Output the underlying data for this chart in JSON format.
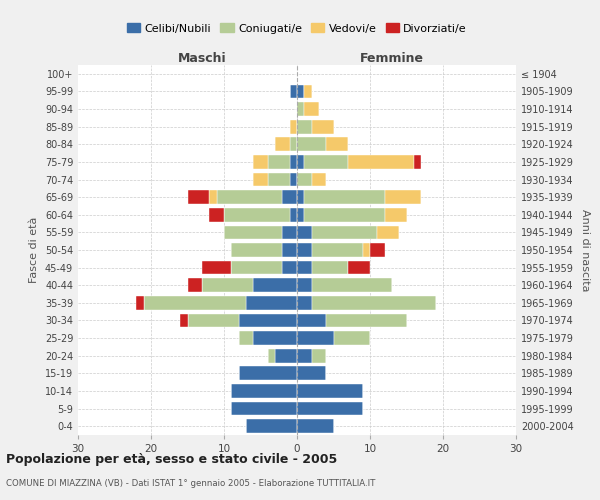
{
  "age_groups": [
    "0-4",
    "5-9",
    "10-14",
    "15-19",
    "20-24",
    "25-29",
    "30-34",
    "35-39",
    "40-44",
    "45-49",
    "50-54",
    "55-59",
    "60-64",
    "65-69",
    "70-74",
    "75-79",
    "80-84",
    "85-89",
    "90-94",
    "95-99",
    "100+"
  ],
  "birth_years": [
    "2000-2004",
    "1995-1999",
    "1990-1994",
    "1985-1989",
    "1980-1984",
    "1975-1979",
    "1970-1974",
    "1965-1969",
    "1960-1964",
    "1955-1959",
    "1950-1954",
    "1945-1949",
    "1940-1944",
    "1935-1939",
    "1930-1934",
    "1925-1929",
    "1920-1924",
    "1915-1919",
    "1910-1914",
    "1905-1909",
    "≤ 1904"
  ],
  "maschi": {
    "celibi": [
      7,
      9,
      9,
      8,
      3,
      6,
      8,
      7,
      6,
      2,
      2,
      2,
      1,
      2,
      1,
      1,
      0,
      0,
      0,
      1,
      0
    ],
    "coniugati": [
      0,
      0,
      0,
      0,
      1,
      2,
      7,
      14,
      7,
      7,
      7,
      8,
      9,
      9,
      3,
      3,
      1,
      0,
      0,
      0,
      0
    ],
    "vedovi": [
      0,
      0,
      0,
      0,
      0,
      0,
      0,
      0,
      0,
      0,
      0,
      0,
      0,
      1,
      2,
      2,
      2,
      1,
      0,
      0,
      0
    ],
    "divorziati": [
      0,
      0,
      0,
      0,
      0,
      0,
      1,
      1,
      2,
      4,
      0,
      0,
      2,
      3,
      0,
      0,
      0,
      0,
      0,
      0,
      0
    ]
  },
  "femmine": {
    "nubili": [
      5,
      9,
      9,
      4,
      2,
      5,
      4,
      2,
      2,
      2,
      2,
      2,
      1,
      1,
      0,
      1,
      0,
      0,
      0,
      1,
      0
    ],
    "coniugate": [
      0,
      0,
      0,
      0,
      2,
      5,
      11,
      17,
      11,
      5,
      7,
      9,
      11,
      11,
      2,
      6,
      4,
      2,
      1,
      0,
      0
    ],
    "vedove": [
      0,
      0,
      0,
      0,
      0,
      0,
      0,
      0,
      0,
      0,
      1,
      3,
      3,
      5,
      2,
      9,
      3,
      3,
      2,
      1,
      0
    ],
    "divorziate": [
      0,
      0,
      0,
      0,
      0,
      0,
      0,
      0,
      0,
      3,
      2,
      0,
      0,
      0,
      0,
      1,
      0,
      0,
      0,
      0,
      0
    ]
  },
  "colors": {
    "celibi_nubili": "#3b6ea8",
    "coniugati": "#b5cc96",
    "vedovi": "#f5c96a",
    "divorziati": "#cc2222"
  },
  "xlim": 30,
  "title": "Popolazione per età, sesso e stato civile - 2005",
  "subtitle": "COMUNE DI MIAZZINA (VB) - Dati ISTAT 1° gennaio 2005 - Elaborazione TUTTITALIA.IT",
  "xlabel_left": "Maschi",
  "xlabel_right": "Femmine",
  "ylabel_left": "Fasce di età",
  "ylabel_right": "Anni di nascita",
  "legend_labels": [
    "Celibi/Nubili",
    "Coniugati/e",
    "Vedovi/e",
    "Divorziati/e"
  ],
  "bg_color": "#f0f0f0",
  "plot_bg_color": "#ffffff",
  "grid_color": "#cccccc"
}
